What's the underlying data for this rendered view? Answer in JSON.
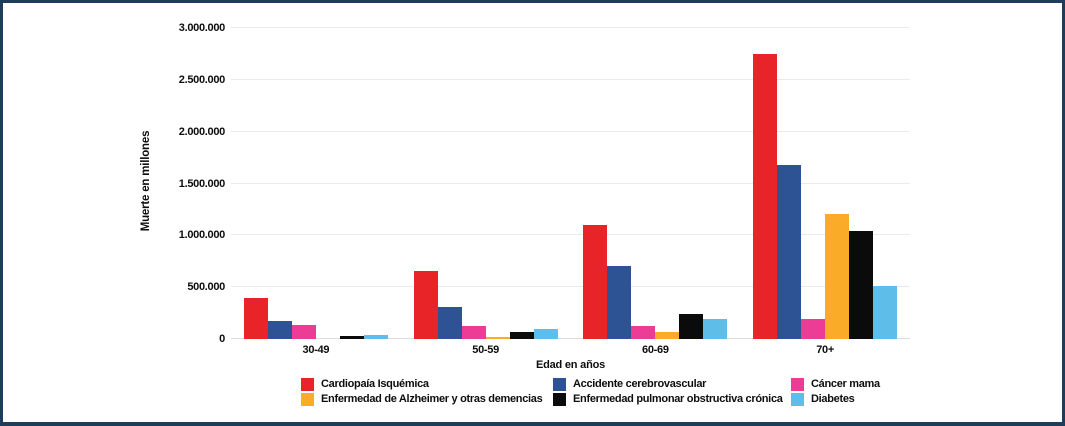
{
  "frame": {
    "border_color": "#1E3D5C",
    "background_color": "#FFFFFF"
  },
  "chart_data": {
    "type": "bar",
    "title": "",
    "xlabel": "Edad en años",
    "ylabel": "Muerte en millones",
    "categories": [
      "30-49",
      "50-59",
      "60-69",
      "70+"
    ],
    "series": [
      {
        "name": "Cardiopaía Isquémica",
        "color": "#E92429",
        "values": [
          400000,
          655000,
          1100000,
          2750000
        ]
      },
      {
        "name": "Accidente cerebrovascular",
        "color": "#2E5395",
        "values": [
          170000,
          310000,
          700000,
          1680000
        ]
      },
      {
        "name": "Cáncer mama",
        "color": "#EC3C95",
        "values": [
          135000,
          125000,
          130000,
          190000
        ]
      },
      {
        "name": "Enfermedad de Alzheimer y otras demencias",
        "color": "#FAAB27",
        "values": [
          4000,
          15000,
          70000,
          1210000
        ]
      },
      {
        "name": "Enfermedad pulmonar obstructiva crónica",
        "color": "#0B0B0B",
        "values": [
          30000,
          65000,
          240000,
          1040000
        ]
      },
      {
        "name": "Diabetes",
        "color": "#5EBEE9",
        "values": [
          40000,
          95000,
          195000,
          510000
        ]
      }
    ],
    "ylim": [
      0,
      3000000
    ],
    "ytick_step": 500000,
    "ytick_labels": [
      "0",
      "500.000",
      "1.000.000",
      "1.500.000",
      "2.000.000",
      "2.500.000",
      "3.000.000"
    ],
    "grid": true,
    "legend_position": "bottom",
    "legend_rows": 2,
    "legend_columns": 3
  }
}
